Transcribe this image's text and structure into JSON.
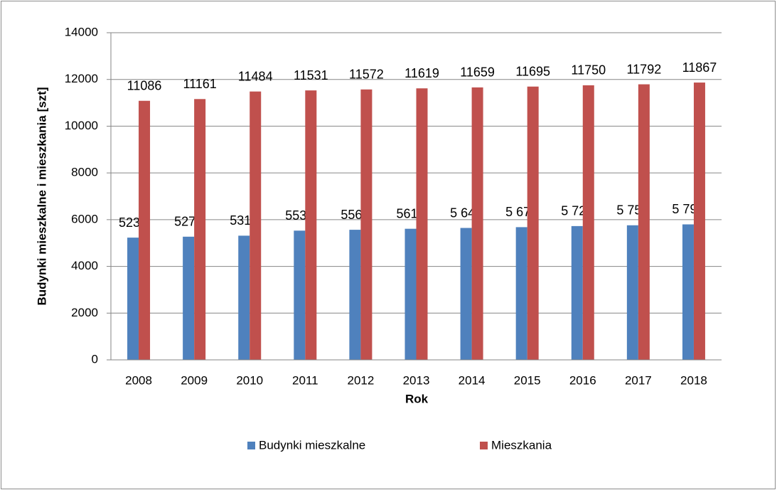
{
  "chart_data": {
    "type": "bar",
    "categories": [
      "2008",
      "2009",
      "2010",
      "2011",
      "2012",
      "2013",
      "2014",
      "2015",
      "2016",
      "2017",
      "2018"
    ],
    "series": [
      {
        "name": "Budynki mieszkalne",
        "color": "#4f81bd",
        "values": [
          5231,
          5271,
          5314,
          5530,
          5567,
          5610,
          5645,
          5679,
          5725,
          5759,
          5798
        ],
        "value_labels": [
          "5231",
          "5271",
          "5314",
          "5530",
          "5567",
          "5610",
          "5 645",
          "5 679",
          "5 725",
          "5 759",
          "5 798"
        ]
      },
      {
        "name": "Mieszkania",
        "color": "#c0504d",
        "values": [
          11086,
          11161,
          11484,
          11531,
          11572,
          11619,
          11659,
          11695,
          11750,
          11792,
          11867
        ]
      }
    ],
    "xlabel": "Rok",
    "ylabel": "Budynki mieszkalne i mieszkania [szt]",
    "ylim": [
      0,
      14000
    ],
    "yticks": [
      0,
      2000,
      4000,
      6000,
      8000,
      10000,
      12000,
      14000
    ],
    "grid": true,
    "legend": "bottom"
  }
}
